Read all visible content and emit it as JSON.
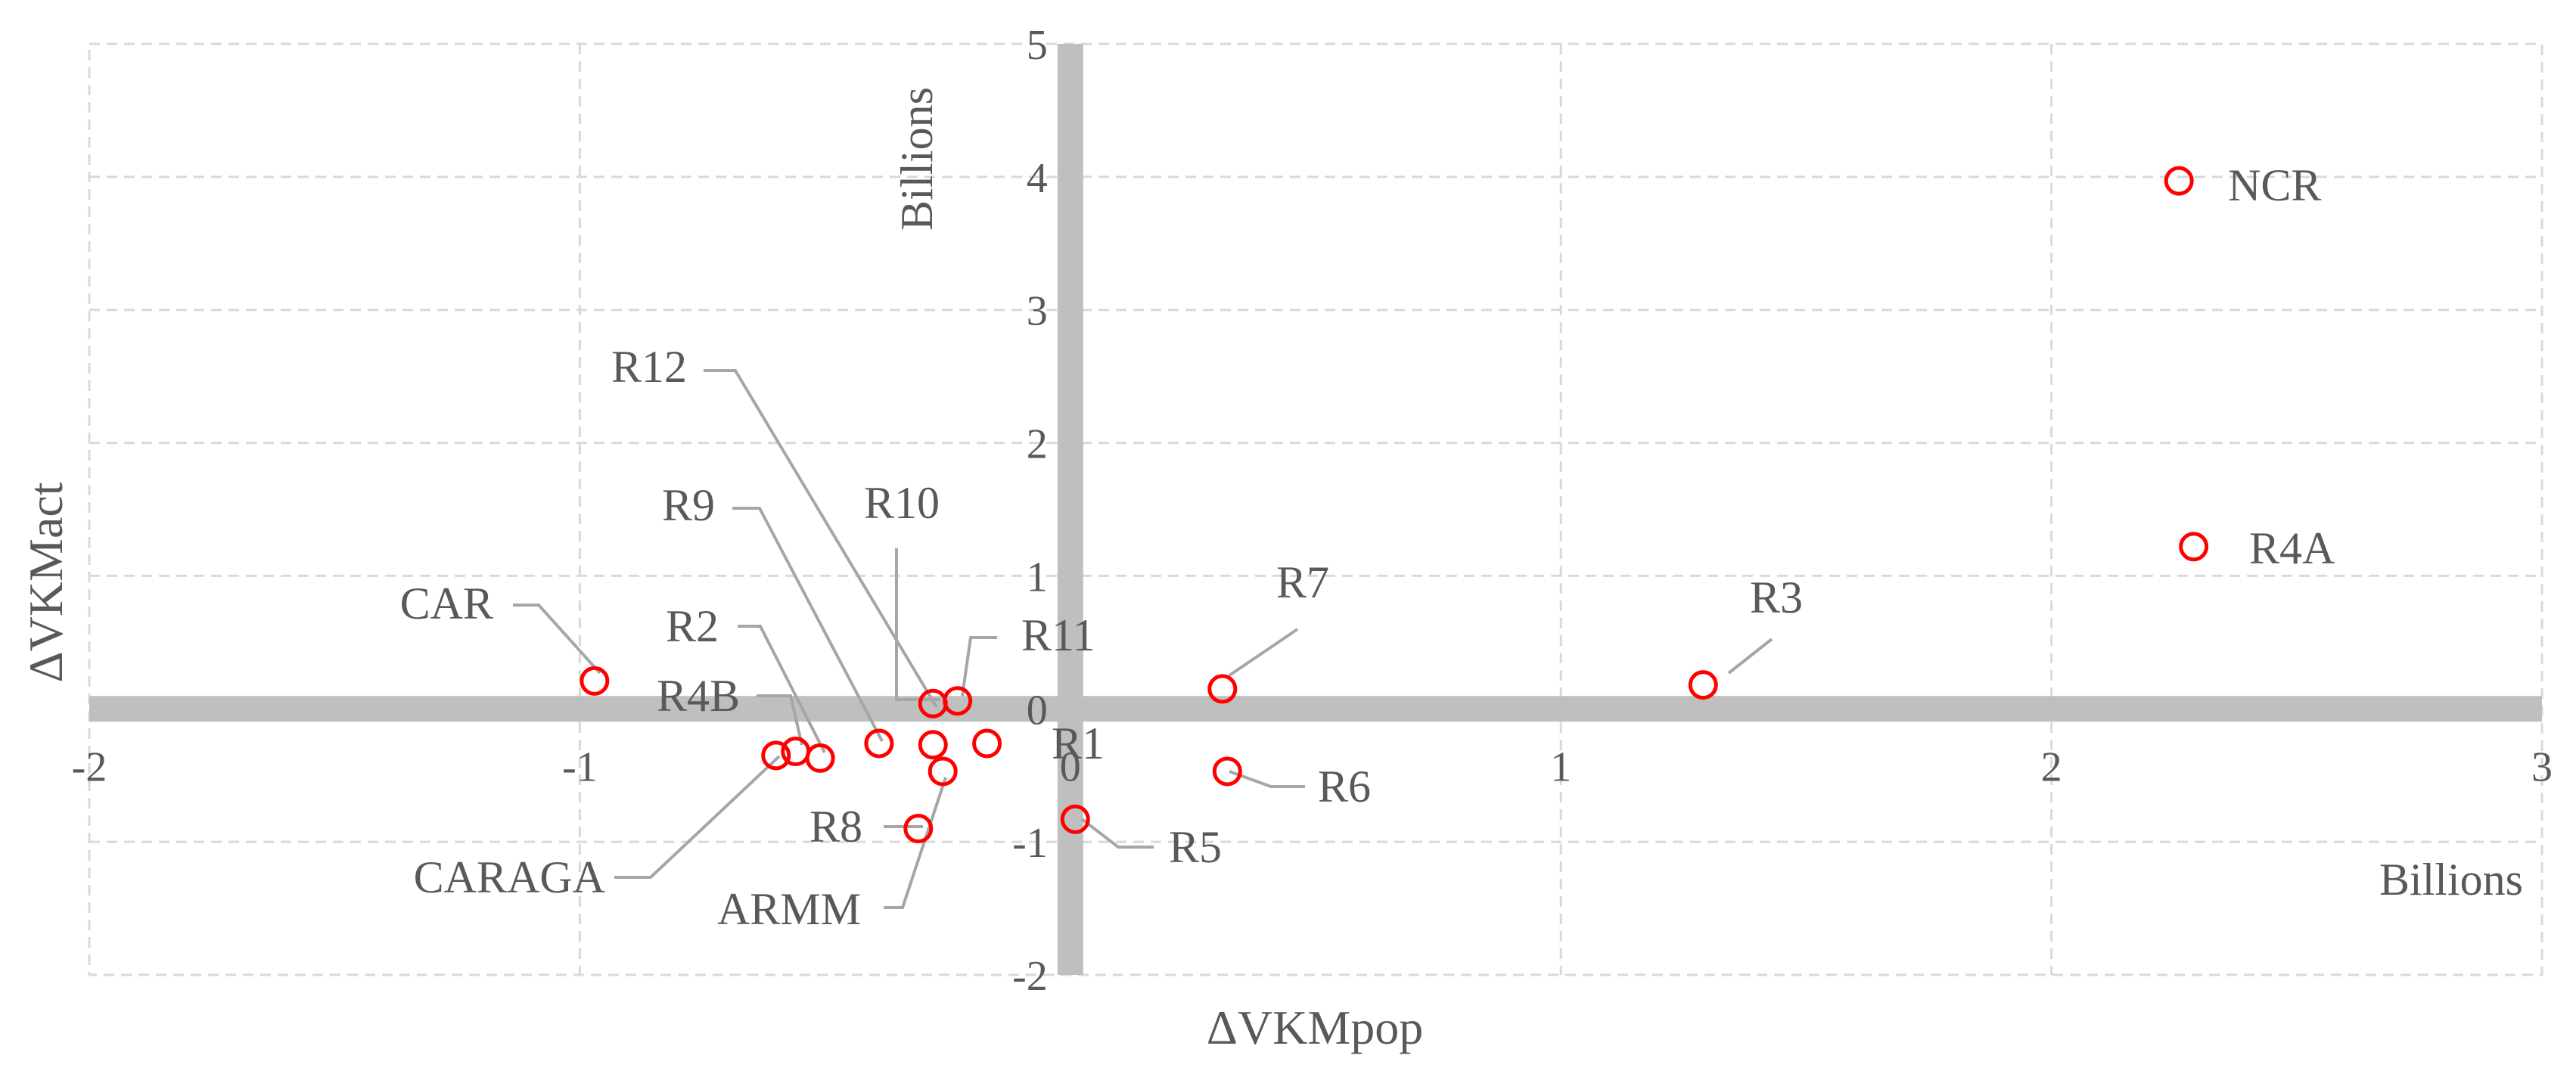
{
  "chart_data": {
    "type": "scatter",
    "x_axis": {
      "label": "ΔVKMpop",
      "unit": "Billions",
      "range": [
        -2,
        3
      ],
      "ticks": [
        -2,
        -1,
        0,
        1,
        2,
        3
      ]
    },
    "y_axis": {
      "label": "ΔVKMact",
      "unit": "Billions",
      "range": [
        -2,
        5
      ],
      "ticks": [
        -2,
        -1,
        0,
        1,
        2,
        3,
        4,
        5
      ]
    },
    "grid": true,
    "marker_color": "#ff0000",
    "axis_line_color": "#bfbfbf",
    "points": [
      {
        "name": "NCR",
        "x": 2.26,
        "y": 3.97
      },
      {
        "name": "R4A",
        "x": 2.29,
        "y": 1.22
      },
      {
        "name": "R3",
        "x": 1.29,
        "y": 0.18
      },
      {
        "name": "R7",
        "x": 0.31,
        "y": 0.15
      },
      {
        "name": "R6",
        "x": 0.32,
        "y": -0.47
      },
      {
        "name": "R5",
        "x": 0.01,
        "y": -0.83
      },
      {
        "name": "R1",
        "x": -0.17,
        "y": -0.26
      },
      {
        "name": "R11",
        "x": -0.23,
        "y": 0.06
      },
      {
        "name": "R10",
        "x": -0.28,
        "y": 0.04
      },
      {
        "name": "R12",
        "x": -0.28,
        "y": -0.27
      },
      {
        "name": "R9",
        "x": -0.39,
        "y": -0.26
      },
      {
        "name": "R2",
        "x": -0.51,
        "y": -0.37
      },
      {
        "name": "R4B",
        "x": -0.56,
        "y": -0.32
      },
      {
        "name": "CARAGA",
        "x": -0.6,
        "y": -0.35
      },
      {
        "name": "CAR",
        "x": -0.97,
        "y": 0.21
      },
      {
        "name": "R8",
        "x": -0.31,
        "y": -0.9
      },
      {
        "name": "ARMM",
        "x": -0.26,
        "y": -0.47
      }
    ]
  }
}
